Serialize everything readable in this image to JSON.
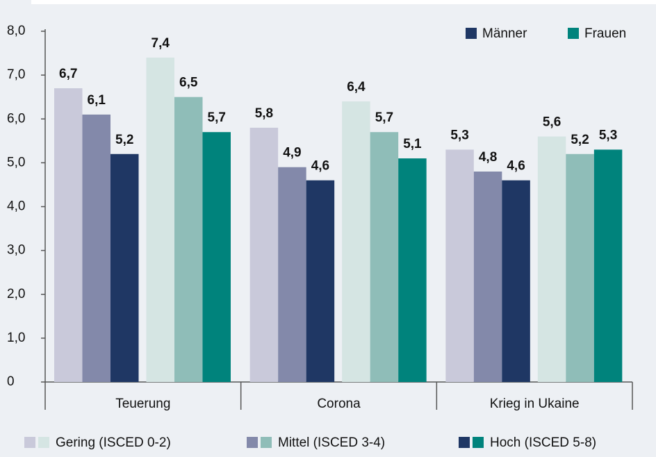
{
  "chart_data": {
    "type": "grouped-bar",
    "categories": [
      "Teuerung",
      "Corona",
      "Krieg in Ukaine"
    ],
    "groups": [
      {
        "name": "Männer",
        "color": "#1f3764",
        "series": [
          {
            "color": "#c9c9da",
            "values": [
              6.7,
              5.8,
              5.3
            ],
            "value_labels": [
              "6,7",
              "5,8",
              "5,3"
            ]
          },
          {
            "color": "#8389aa",
            "values": [
              6.1,
              4.9,
              4.8
            ],
            "value_labels": [
              "6,1",
              "4,9",
              "4,8"
            ]
          },
          {
            "color": "#1f3764",
            "values": [
              5.2,
              4.6,
              4.6
            ],
            "value_labels": [
              "5,2",
              "4,6",
              "4,6"
            ]
          }
        ]
      },
      {
        "name": "Frauen",
        "color": "#00837c",
        "series": [
          {
            "color": "#d5e5e3",
            "values": [
              7.4,
              6.4,
              5.6
            ],
            "value_labels": [
              "7,4",
              "6,4",
              "5,6"
            ]
          },
          {
            "color": "#8fbdb8",
            "values": [
              6.5,
              5.7,
              5.2
            ],
            "value_labels": [
              "6,5",
              "5,7",
              "5,2"
            ]
          },
          {
            "color": "#00837c",
            "values": [
              5.7,
              5.1,
              5.3
            ],
            "value_labels": [
              "5,7",
              "5,1",
              "5,3"
            ]
          }
        ]
      }
    ],
    "levels": [
      "Gering (ISCED 0-2)",
      "Mittel (ISCED 3-4)",
      "Hoch (ISCED 5-8)"
    ],
    "ylim": [
      0,
      8
    ],
    "yticks": [
      0,
      {
        "value": 1,
        "label": "1,0"
      },
      {
        "value": 2,
        "label": "2,0"
      },
      {
        "value": 3,
        "label": "3,0"
      },
      {
        "value": 4,
        "label": "4,0"
      },
      {
        "value": 5,
        "label": "5,0"
      },
      {
        "value": 6,
        "label": "6,0"
      },
      {
        "value": 7,
        "label": "7,0"
      },
      {
        "value": 8,
        "label": "8,0"
      }
    ],
    "legend": "top-right"
  }
}
